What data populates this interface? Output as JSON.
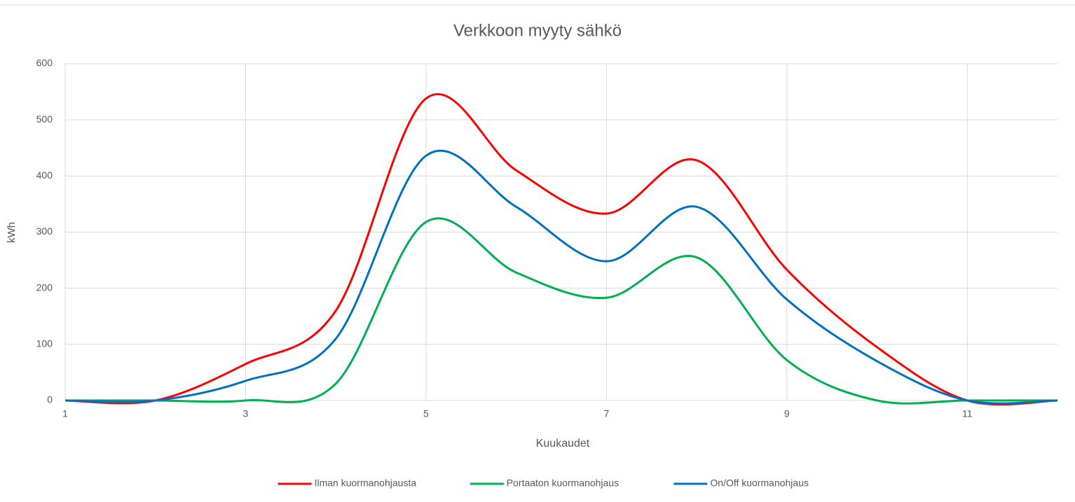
{
  "chart_data": {
    "type": "line",
    "title": "Verkkoon myyty sähkö",
    "x_label": "Kuukaudet",
    "y_label": "kWh",
    "x": [
      1,
      2,
      3,
      4,
      5,
      6,
      7,
      8,
      9,
      10,
      11,
      12
    ],
    "series": [
      {
        "name": "Ilman kuormanohjausta",
        "color": "#ff0000",
        "values": [
          0,
          0,
          65,
          160,
          538,
          410,
          333,
          428,
          233,
          95,
          0,
          0
        ]
      },
      {
        "name": "Portaaton kuormanohjaus",
        "color": "#00b050",
        "values": [
          0,
          0,
          0,
          30,
          318,
          228,
          183,
          255,
          72,
          0,
          0,
          0
        ]
      },
      {
        "name": "On/Off kuormanohjaus",
        "color": "#0070c0",
        "values": [
          0,
          0,
          35,
          110,
          436,
          345,
          248,
          345,
          180,
          70,
          0,
          0
        ]
      }
    ],
    "xlim": [
      1,
      12
    ],
    "xticks": [
      1,
      3,
      5,
      7,
      9,
      11
    ],
    "ylim": [
      0,
      600
    ],
    "yticks": [
      0,
      100,
      200,
      300,
      400,
      500,
      600
    ],
    "grid": true,
    "smooth": true,
    "legend": "bottom"
  }
}
